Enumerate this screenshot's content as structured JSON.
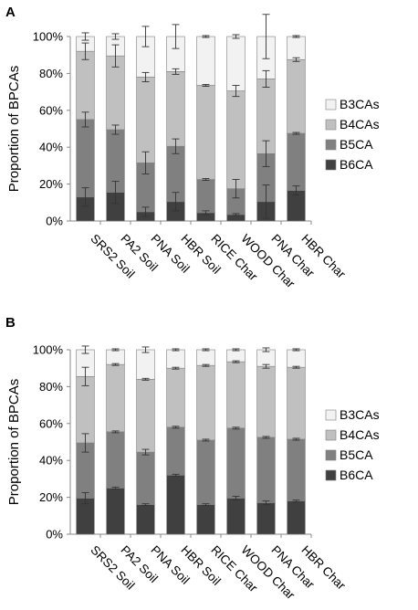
{
  "chart_data": [
    {
      "type": "bar",
      "stacked": true,
      "panel": "A",
      "ylabel": "Proportion of BPCAs",
      "ylim": [
        0,
        100
      ],
      "yticks": [
        "0%",
        "20%",
        "40%",
        "60%",
        "80%",
        "100%"
      ],
      "grid": false,
      "legend_position": "right",
      "categories": [
        "SRS2 Soil",
        "PA2 Soil",
        "PNA Soil",
        "HBR Soil",
        "RICE Char",
        "WOOD Char",
        "PNA Char",
        "HBR Char"
      ],
      "series": [
        {
          "name": "B6CA",
          "color": "#404040",
          "values": [
            13,
            15.5,
            5,
            10.5,
            4.5,
            3.5,
            10.5,
            16.5
          ],
          "errors": [
            5,
            6,
            2.5,
            5,
            1,
            0.5,
            9,
            2.5
          ]
        },
        {
          "name": "B5CA",
          "color": "#808080",
          "values": [
            42,
            34,
            26.5,
            30,
            18,
            14,
            26,
            31
          ],
          "errors": [
            4,
            2.5,
            6,
            4,
            0.5,
            5,
            7,
            0.5
          ]
        },
        {
          "name": "B4CAs",
          "color": "#c0c0c0",
          "values": [
            37,
            40,
            46.5,
            40.5,
            51,
            53,
            40.5,
            40
          ],
          "errors": [
            4.5,
            6,
            2.5,
            1.5,
            0.5,
            3,
            4.5,
            1
          ]
        },
        {
          "name": "B3CAs",
          "color": "#f2f2f2",
          "values": [
            8,
            10.5,
            22,
            19,
            26.5,
            29.5,
            23,
            12.5
          ],
          "errors": [
            2,
            1.5,
            5.5,
            6.5,
            0.5,
            1,
            12,
            0.5
          ]
        }
      ]
    },
    {
      "type": "bar",
      "stacked": true,
      "panel": "B",
      "ylabel": "Proportion of BPCAs",
      "ylim": [
        0,
        100
      ],
      "yticks": [
        "0%",
        "20%",
        "40%",
        "60%",
        "80%",
        "100%"
      ],
      "grid": false,
      "legend_position": "right",
      "categories": [
        "SRS2 Soil",
        "PA2 Soil",
        "PNA Soil",
        "HBR Soil",
        "RICE Char",
        "WOOD Char",
        "PNA Char",
        "HBR Char"
      ],
      "series": [
        {
          "name": "B6CA",
          "color": "#404040",
          "values": [
            19.5,
            25,
            16,
            32,
            16,
            19.5,
            17,
            18
          ],
          "errors": [
            3,
            0.5,
            0.5,
            0.5,
            0.5,
            1,
            1,
            0.5
          ]
        },
        {
          "name": "B5CA",
          "color": "#808080",
          "values": [
            30,
            30.5,
            28.5,
            26,
            35,
            38,
            35.5,
            33.5
          ],
          "errors": [
            5,
            0.5,
            1.5,
            0.5,
            0.5,
            0.5,
            0.5,
            0.5
          ]
        },
        {
          "name": "B4CAs",
          "color": "#c0c0c0",
          "values": [
            36,
            36.5,
            39.5,
            32,
            40.5,
            36,
            38.5,
            39
          ],
          "errors": [
            5,
            0.5,
            0.5,
            0.5,
            0.5,
            0.5,
            1,
            0.5
          ]
        },
        {
          "name": "B3CAs",
          "color": "#f2f2f2",
          "values": [
            14.5,
            8,
            16,
            10,
            8.5,
            6.5,
            9,
            9.5
          ],
          "errors": [
            2,
            0.5,
            1.5,
            0.5,
            0.5,
            0.5,
            1,
            0.5
          ]
        }
      ]
    }
  ]
}
